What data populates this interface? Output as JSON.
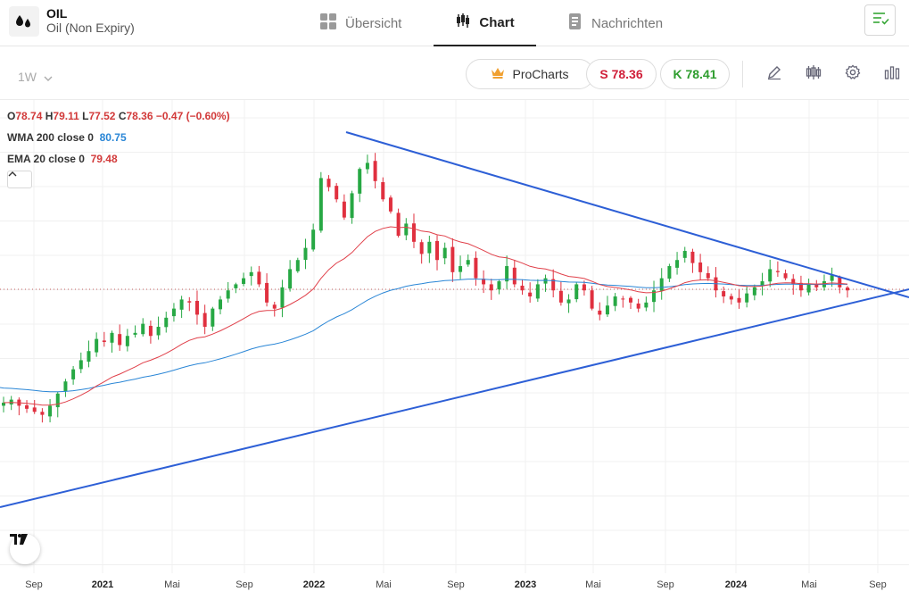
{
  "header": {
    "symbol": "OIL",
    "name": "Oil (Non Expiry)",
    "tabs": [
      {
        "label": "Übersicht",
        "icon": "grid-icon"
      },
      {
        "label": "Chart",
        "icon": "candles-icon",
        "active": true
      },
      {
        "label": "Nachrichten",
        "icon": "news-icon"
      }
    ]
  },
  "toolbar": {
    "interval": "1W",
    "procharts_label": "ProCharts",
    "sell_label": "S 78.36",
    "buy_label": "K 78.41"
  },
  "legend": {
    "ohlc": {
      "o_label": "O",
      "o": "78.74",
      "h_label": "H",
      "h": "79.11",
      "l_label": "L",
      "l": "77.52",
      "c_label": "C",
      "c": "78.36",
      "change": "−0.47 (−0.60%)"
    },
    "wma": {
      "label": "WMA 200 close 0",
      "value": "80.75"
    },
    "ema": {
      "label": "EMA 20 close 0",
      "value": "79.48"
    }
  },
  "colors": {
    "up": "#27a844",
    "down": "#e0303f",
    "wma": "#2a86d6",
    "ema": "#e0404a",
    "trendline": "#2d5fd6"
  },
  "chart_data": {
    "type": "candlestick",
    "interval": "1W",
    "x_axis_labels": [
      "Sep",
      "2021",
      "Mai",
      "Sep",
      "2022",
      "Mai",
      "Sep",
      "2023",
      "Mai",
      "Sep",
      "2024",
      "Mai",
      "Sep"
    ],
    "grid": true,
    "last_close": 78.36,
    "series": [
      {
        "name": "WMA 200 close 0",
        "last_value": 80.75
      },
      {
        "name": "EMA 20 close 0",
        "last_value": 79.48
      }
    ],
    "trendlines": [
      {
        "points": [
          [
            "2022-03-08",
            130.0
          ],
          [
            "2024-10-15",
            78.0
          ]
        ]
      },
      {
        "points": [
          [
            "2020-07-01",
            30.0
          ],
          [
            "2024-10-15",
            79.0
          ]
        ]
      }
    ],
    "approx_closes": [
      41,
      42,
      40,
      39,
      38,
      37,
      40,
      44,
      48,
      52,
      55,
      58,
      62,
      61,
      64,
      60,
      63,
      64,
      67,
      63,
      66,
      69,
      72,
      75,
      74,
      70,
      66,
      72,
      75,
      78,
      80,
      82,
      84,
      80,
      74,
      72,
      79,
      85,
      88,
      92,
      98,
      115,
      112,
      108,
      102,
      110,
      118,
      120,
      114,
      108,
      104,
      96,
      100,
      94,
      90,
      94,
      88,
      92,
      84,
      86,
      88,
      82,
      80,
      78,
      81,
      86,
      80,
      78,
      76,
      80,
      82,
      78,
      74,
      75,
      80,
      78,
      72,
      70,
      73,
      76,
      75,
      74,
      72,
      74,
      78,
      82,
      86,
      88,
      91,
      87,
      84,
      82,
      78,
      76,
      75,
      74,
      77,
      79,
      81,
      85,
      84,
      82,
      80,
      78,
      80,
      79,
      81,
      83,
      79,
      78
    ]
  }
}
